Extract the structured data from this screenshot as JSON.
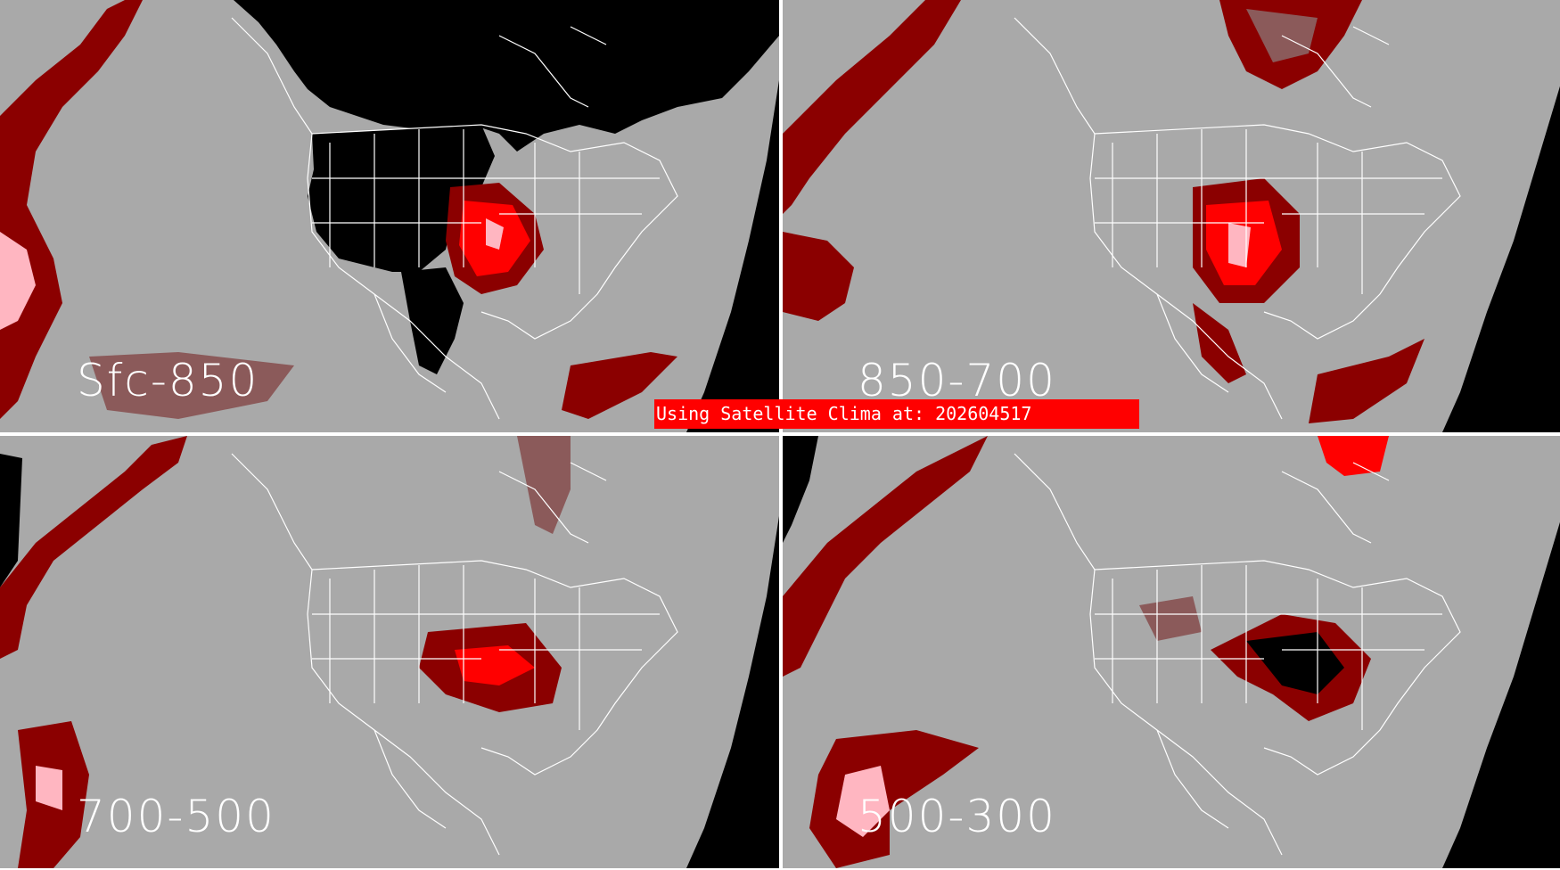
{
  "panels": [
    {
      "id": "tl",
      "label": "Sfc-850"
    },
    {
      "id": "tr",
      "label": "850-700"
    },
    {
      "id": "bl",
      "label": "700-500"
    },
    {
      "id": "br",
      "label": "500-300"
    }
  ],
  "banner": {
    "text": "Using Satellite Clima at: 202604517"
  },
  "colors": {
    "background_gray": "#a9a9a9",
    "no_data_black": "#000000",
    "dark_red": "#8b0000",
    "dim_red": "#8b5a5a",
    "red": "#ff0000",
    "pink": "#ffb6c1",
    "boundary_white": "#ffffff",
    "divider": "#ffffff"
  }
}
